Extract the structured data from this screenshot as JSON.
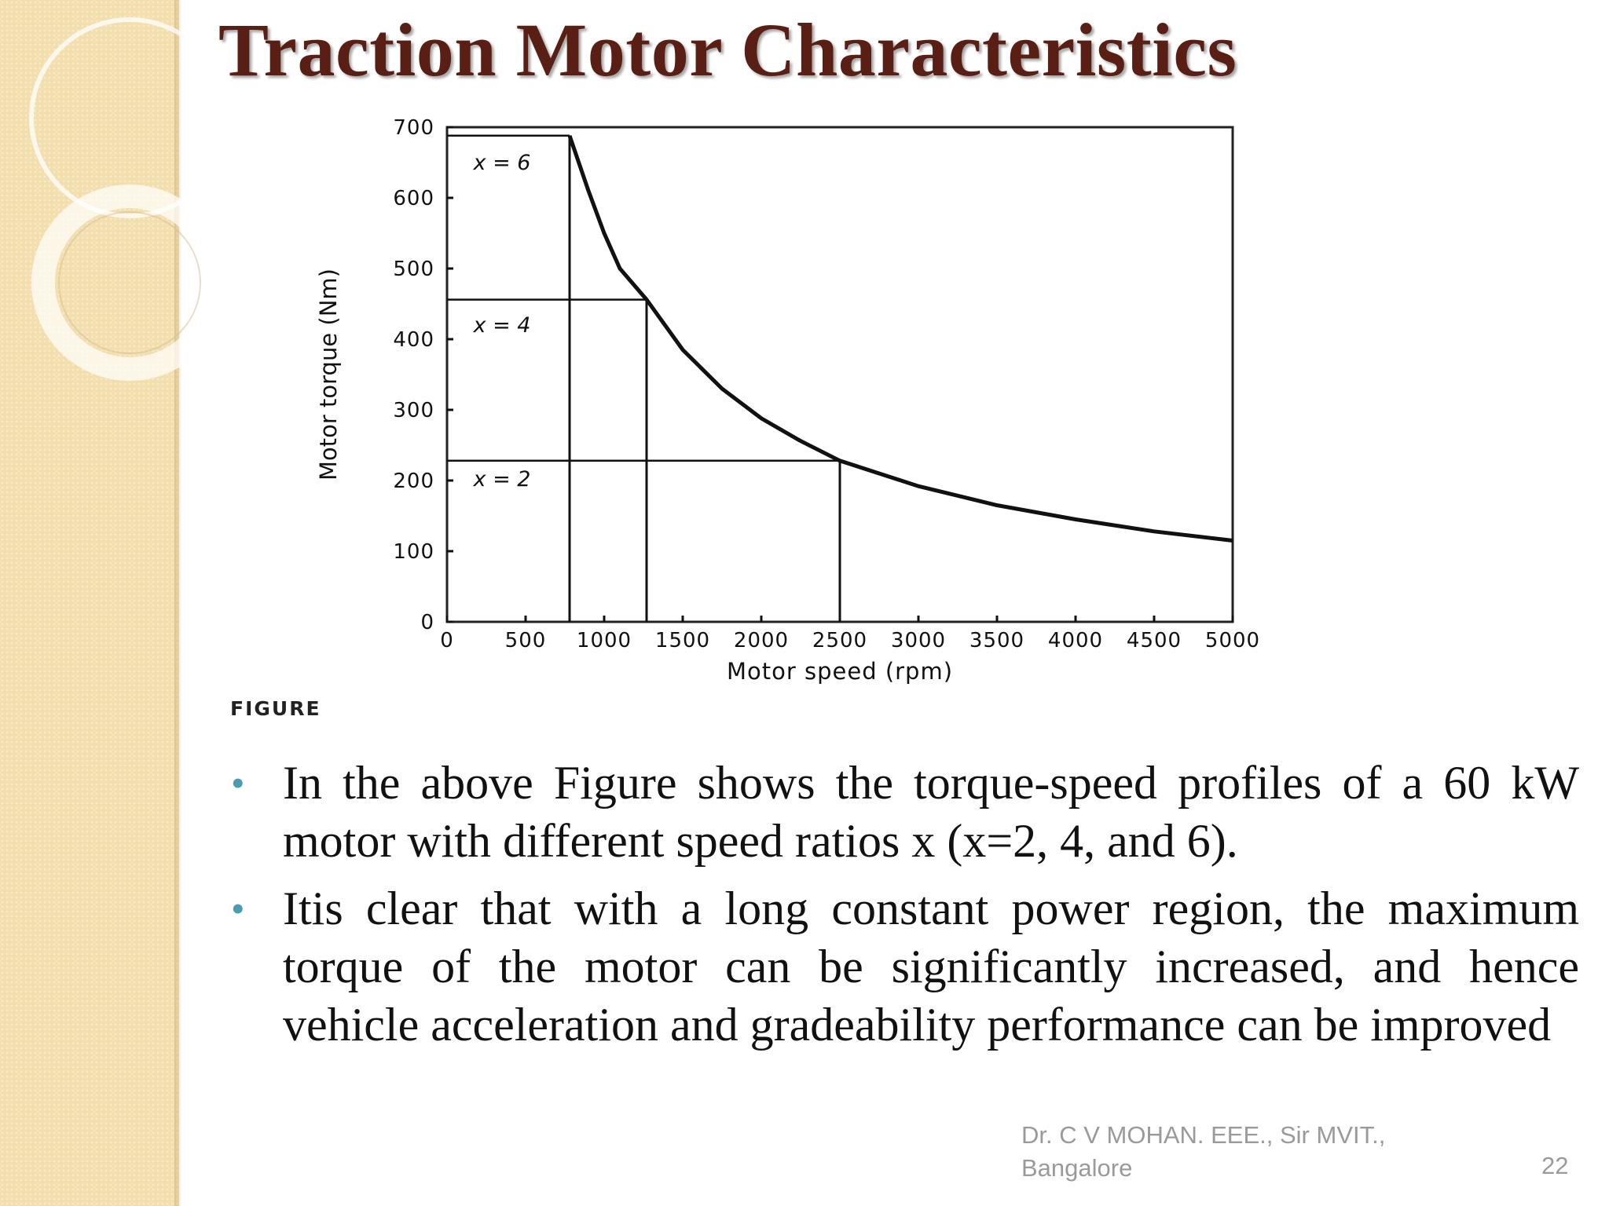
{
  "slide": {
    "title": "Traction Motor Characteristics",
    "figure_caption": "FIGURE",
    "bullets": [
      "In the above Figure shows the torque-speed profiles of a 60 kW motor with different speed ratios x (x=2, 4, and 6).",
      "Itis clear that with a long constant power region, the maximum torque of the motor can be significantly increased, and hence vehicle acceleration and gradeability performance can be improved"
    ],
    "footer_author": "Dr.  C V MOHAN.  EEE., Sir MVIT., Bangalore",
    "page_number": "22",
    "colors": {
      "title": "#5a1f14",
      "bullet": "#4a9cb3",
      "side_band": "#f3dfae",
      "footer": "#9a9a9a"
    }
  },
  "chart_data": {
    "type": "line",
    "xlabel": "Motor speed (rpm)",
    "ylabel": "Motor torque (Nm)",
    "xlim": [
      0,
      5000
    ],
    "ylim": [
      0,
      700
    ],
    "x_ticks": [
      0,
      500,
      1000,
      1500,
      2000,
      2500,
      3000,
      3500,
      4000,
      4500,
      5000
    ],
    "y_ticks": [
      0,
      100,
      200,
      300,
      400,
      500,
      600,
      700
    ],
    "grid": false,
    "power_kw": 60,
    "base_speeds_rpm": [
      780,
      1270,
      2500
    ],
    "constant_torques_nm": [
      688,
      456,
      228
    ],
    "annotations": [
      {
        "text": "x = 6",
        "x": 350,
        "y": 640
      },
      {
        "text": "x = 4",
        "x": 350,
        "y": 410
      },
      {
        "text": "x = 2",
        "x": 350,
        "y": 192
      }
    ],
    "curve": {
      "x": [
        780,
        900,
        1000,
        1100,
        1270,
        1500,
        1750,
        2000,
        2250,
        2500,
        3000,
        3500,
        4000,
        4500,
        5000
      ],
      "y": [
        688,
        610,
        550,
        500,
        456,
        385,
        330,
        288,
        256,
        228,
        192,
        165,
        145,
        128,
        115
      ]
    }
  }
}
